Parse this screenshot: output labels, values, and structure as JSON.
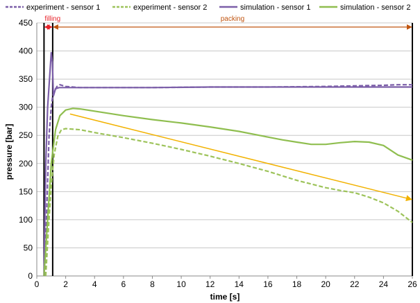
{
  "chart_data": {
    "type": "line",
    "xlabel": "time  [s]",
    "ylabel": "pressure [bar]",
    "xlim": [
      0,
      26
    ],
    "ylim": [
      0,
      450
    ],
    "xticks": [
      0,
      2,
      4,
      6,
      8,
      10,
      12,
      14,
      16,
      18,
      20,
      22,
      24,
      26
    ],
    "yticks": [
      0,
      50,
      100,
      150,
      200,
      250,
      300,
      350,
      400,
      450
    ],
    "grid": "horizontal",
    "legend_position": "top",
    "annotations": {
      "filling": {
        "label": "filling",
        "x_start": 0.5,
        "x_end": 1.1,
        "color": "#e8232a"
      },
      "packing": {
        "label": "packing",
        "x_start": 1.1,
        "x_end": 26,
        "color": "#c0540f"
      },
      "vlines": [
        0.5,
        1.1
      ],
      "trend_arrow": {
        "color": "#f2b200",
        "x": [
          2.3,
          26
        ],
        "y": [
          288,
          136
        ]
      }
    },
    "series": [
      {
        "name": "experiment - sensor 1",
        "color": "#7b5ea8",
        "dash": true,
        "x": [
          0.55,
          0.7,
          0.85,
          1.0,
          1.1,
          1.25,
          1.4,
          1.6,
          2,
          3,
          5,
          8,
          12,
          16,
          20,
          22,
          24,
          25,
          25.9,
          26
        ],
        "y": [
          0,
          130,
          250,
          300,
          320,
          330,
          337,
          340,
          337,
          335,
          335,
          335,
          336,
          336,
          337,
          338,
          339,
          340,
          340,
          340
        ]
      },
      {
        "name": "experiment - sensor 2",
        "color": "#9dc35a",
        "dash": true,
        "x": [
          0.62,
          0.8,
          1.0,
          1.2,
          1.45,
          1.7,
          2,
          3,
          4,
          6,
          8,
          10,
          12,
          14,
          16,
          18,
          20,
          21,
          22,
          23,
          24,
          25,
          26
        ],
        "y": [
          0,
          80,
          160,
          215,
          248,
          260,
          262,
          260,
          255,
          246,
          236,
          225,
          213,
          200,
          186,
          170,
          157,
          152,
          148,
          140,
          130,
          115,
          95
        ]
      },
      {
        "name": "simulation - sensor 1",
        "color": "#7b5ea8",
        "dash": false,
        "x": [
          0.5,
          0.62,
          0.75,
          0.88,
          1.0,
          1.08,
          1.15,
          1.3,
          1.55,
          2,
          4,
          8,
          12,
          16,
          20,
          24,
          26
        ],
        "y": [
          0,
          200,
          300,
          350,
          397,
          380,
          320,
          333,
          335,
          335,
          335,
          335,
          336,
          336,
          336,
          336,
          336
        ]
      },
      {
        "name": "simulation - sensor 2",
        "color": "#8fbe4f",
        "dash": false,
        "x": [
          0.5,
          0.75,
          1.0,
          1.3,
          1.6,
          2,
          2.5,
          3,
          4,
          6,
          8,
          10,
          12,
          14,
          15,
          16,
          17,
          18,
          19,
          20,
          21,
          22,
          23,
          24,
          25,
          26
        ],
        "y": [
          0,
          100,
          200,
          260,
          285,
          295,
          298,
          297,
          293,
          285,
          278,
          272,
          265,
          257,
          252,
          247,
          242,
          238,
          234,
          234,
          237,
          239,
          238,
          232,
          215,
          206
        ]
      }
    ]
  }
}
